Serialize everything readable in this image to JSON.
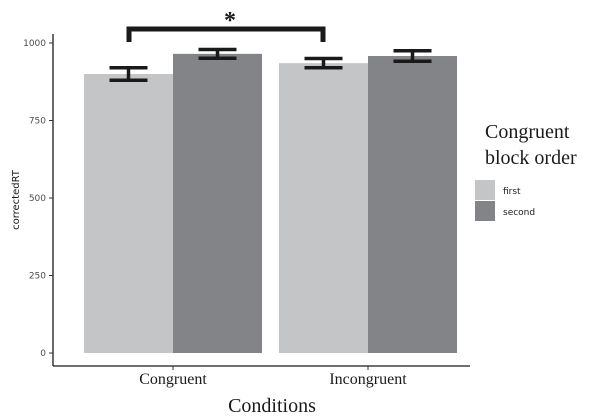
{
  "chart_data": {
    "type": "bar",
    "categories": [
      "Congruent",
      "Incongruent"
    ],
    "series": [
      {
        "name": "first",
        "values": [
          900,
          935
        ],
        "error": [
          20,
          15
        ],
        "color": "#c4c5c7"
      },
      {
        "name": "second",
        "values": [
          965,
          958
        ],
        "error": [
          14,
          17
        ],
        "color": "#838487"
      }
    ],
    "xlabel": "Conditions",
    "ylabel": "correctedRT",
    "ylim": [
      0,
      1000
    ],
    "yticks": [
      0,
      250,
      500,
      750,
      1000
    ],
    "legend": {
      "title_line1": "Congruent",
      "title_line2": "block order",
      "placement": "right"
    },
    "annotation": {
      "text": "*",
      "between": [
        "Congruent",
        "Incongruent"
      ],
      "series": "first"
    },
    "grid": false
  }
}
